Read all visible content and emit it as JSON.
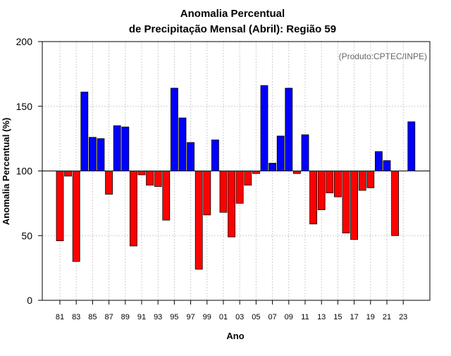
{
  "chart_data": {
    "type": "bar",
    "title_line1": "Anomalia Percentual",
    "title_line2": "de Precipitação Mensal (Abril): Região 59",
    "credit": "(Produto:CPTEC/INPE)",
    "xlabel": "Ano",
    "ylabel": "Anomalia Percentual (%)",
    "ylim": [
      0,
      200
    ],
    "yticks": [
      0,
      50,
      100,
      150,
      200
    ],
    "baseline": 100,
    "grid": true,
    "colors": {
      "above": "#0000ff",
      "below": "#ff0000",
      "axis": "#000000",
      "grid": "#cccccc",
      "credit": "#666666"
    },
    "categories": [
      "81",
      "82",
      "83",
      "84",
      "85",
      "86",
      "87",
      "88",
      "89",
      "90",
      "91",
      "92",
      "93",
      "94",
      "95",
      "96",
      "97",
      "98",
      "99",
      "00",
      "01",
      "02",
      "03",
      "04",
      "05",
      "06",
      "07",
      "08",
      "09",
      "10",
      "11",
      "12",
      "13",
      "14",
      "15",
      "16",
      "17",
      "18",
      "19",
      "20",
      "21",
      "22",
      "23",
      "24"
    ],
    "xtick_labels": [
      "81",
      "83",
      "85",
      "87",
      "89",
      "91",
      "93",
      "95",
      "97",
      "99",
      "01",
      "03",
      "05",
      "07",
      "09",
      "11",
      "13",
      "15",
      "17",
      "19",
      "21",
      "23"
    ],
    "values": [
      46,
      96,
      30,
      161,
      126,
      125,
      82,
      135,
      134,
      42,
      97,
      89,
      88,
      62,
      164,
      141,
      122,
      24,
      66,
      124,
      68,
      49,
      75,
      89,
      98,
      166,
      106,
      127,
      164,
      98,
      128,
      59,
      70,
      83,
      80,
      52,
      47,
      85,
      87,
      115,
      108,
      50,
      100,
      138
    ]
  }
}
